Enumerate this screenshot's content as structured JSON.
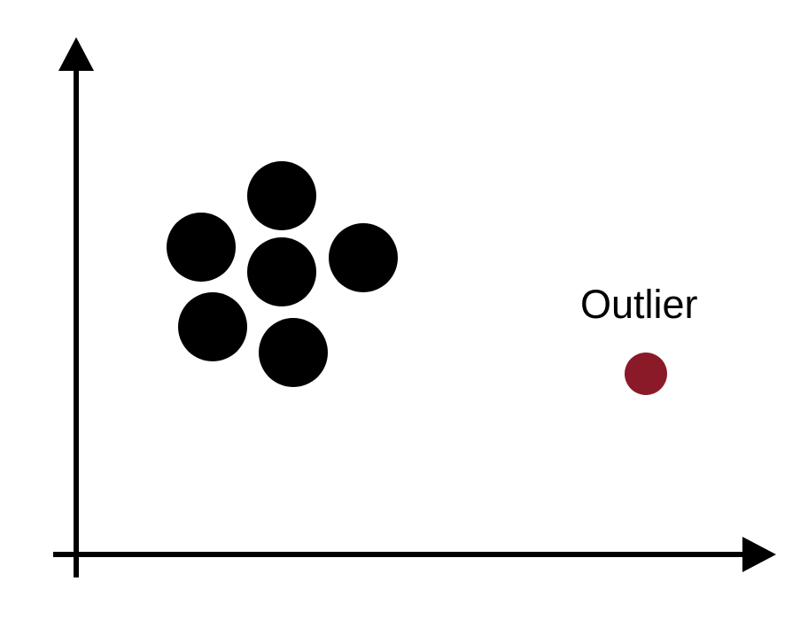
{
  "diagram": {
    "cluster": {
      "color": "#000000",
      "point_count": 6
    },
    "outlier": {
      "label": "Outlier",
      "color": "#8b1a28"
    },
    "axes": {
      "color": "#000000",
      "x_arrow": "right",
      "y_arrow": "up"
    }
  }
}
